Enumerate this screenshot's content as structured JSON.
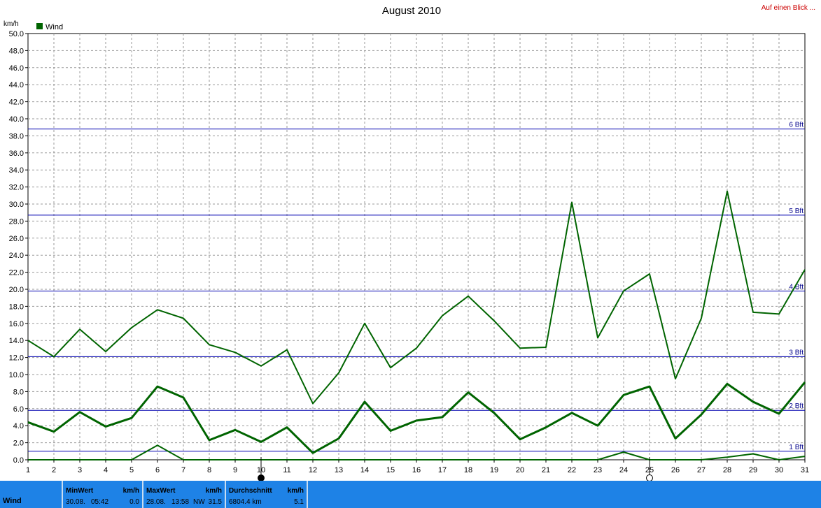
{
  "header": {
    "title": "August 2010",
    "link": "Auf einen Blick ...",
    "unit": "km/h"
  },
  "chart_data": {
    "type": "line",
    "title": "August 2010",
    "ylabel": "km/h",
    "ylim": [
      0,
      50
    ],
    "xlim": [
      1,
      31
    ],
    "grid": true,
    "legend": {
      "position": "top-left",
      "entries": [
        {
          "name": "Wind",
          "color": "#006400"
        }
      ]
    },
    "y_ticks": [
      "0.0",
      "2.0",
      "4.0",
      "6.0",
      "8.0",
      "10.0",
      "12.0",
      "14.0",
      "16.0",
      "18.0",
      "20.0",
      "22.0",
      "24.0",
      "26.0",
      "28.0",
      "30.0",
      "32.0",
      "34.0",
      "36.0",
      "38.0",
      "40.0",
      "42.0",
      "44.0",
      "46.0",
      "48.0",
      "50.0"
    ],
    "x": [
      1,
      2,
      3,
      4,
      5,
      6,
      7,
      8,
      9,
      10,
      11,
      12,
      13,
      14,
      15,
      16,
      17,
      18,
      19,
      20,
      21,
      22,
      23,
      24,
      25,
      26,
      27,
      28,
      29,
      30,
      31
    ],
    "series": [
      {
        "name": "Wind",
        "role": "max",
        "color": "#006400",
        "values": [
          14.0,
          12.1,
          15.3,
          12.7,
          15.5,
          17.6,
          16.6,
          13.5,
          12.6,
          11.0,
          12.9,
          6.6,
          10.2,
          16.0,
          10.8,
          13.1,
          16.9,
          19.2,
          16.3,
          13.1,
          13.2,
          30.2,
          14.3,
          19.8,
          21.8,
          9.5,
          16.6,
          31.5,
          17.3,
          17.1,
          22.3
        ]
      },
      {
        "name": "Wind",
        "role": "average",
        "color": "#006400",
        "values": [
          4.4,
          3.3,
          5.6,
          3.9,
          4.9,
          8.6,
          7.3,
          2.3,
          3.5,
          2.1,
          3.8,
          0.8,
          2.5,
          6.8,
          3.4,
          4.6,
          5.0,
          7.9,
          5.5,
          2.4,
          3.8,
          5.5,
          4.0,
          7.6,
          8.6,
          2.5,
          5.3,
          8.9,
          6.8,
          5.4,
          9.1
        ]
      },
      {
        "name": "Wind",
        "role": "min",
        "color": "#006400",
        "values": [
          0.0,
          0.0,
          0.0,
          0.0,
          0.0,
          1.7,
          0.0,
          0.0,
          0.0,
          0.0,
          0.0,
          0.0,
          0.0,
          0.0,
          0.0,
          0.0,
          0.0,
          0.0,
          0.0,
          0.0,
          0.0,
          0.0,
          0.0,
          0.9,
          0.0,
          0.0,
          0.0,
          0.3,
          0.7,
          0.0,
          0.4
        ]
      }
    ],
    "reference_lines": [
      {
        "label": "1 Bft",
        "value": 1.0
      },
      {
        "label": "2 Bft",
        "value": 5.8
      },
      {
        "label": "3 Bft",
        "value": 12.1
      },
      {
        "label": "4 Bft",
        "value": 19.8
      },
      {
        "label": "5 Bft",
        "value": 28.7
      },
      {
        "label": "6 Bft",
        "value": 38.8
      }
    ],
    "moon_markers": [
      {
        "day": 10,
        "phase": "new"
      },
      {
        "day": 25,
        "phase": "full"
      }
    ]
  },
  "footer": {
    "row_label": "Wind",
    "min": {
      "header": "MinWert",
      "unit": "km/h",
      "date": "30.08.",
      "time": "05:42",
      "value": "0.0"
    },
    "max": {
      "header": "MaxWert",
      "unit": "km/h",
      "date": "28.08.",
      "time": "13:58",
      "dir": "NW",
      "value": "31.5"
    },
    "avg": {
      "header": "Durchschnitt",
      "unit": "km/h",
      "distance": "6804.4 km",
      "value": "5.1"
    }
  }
}
